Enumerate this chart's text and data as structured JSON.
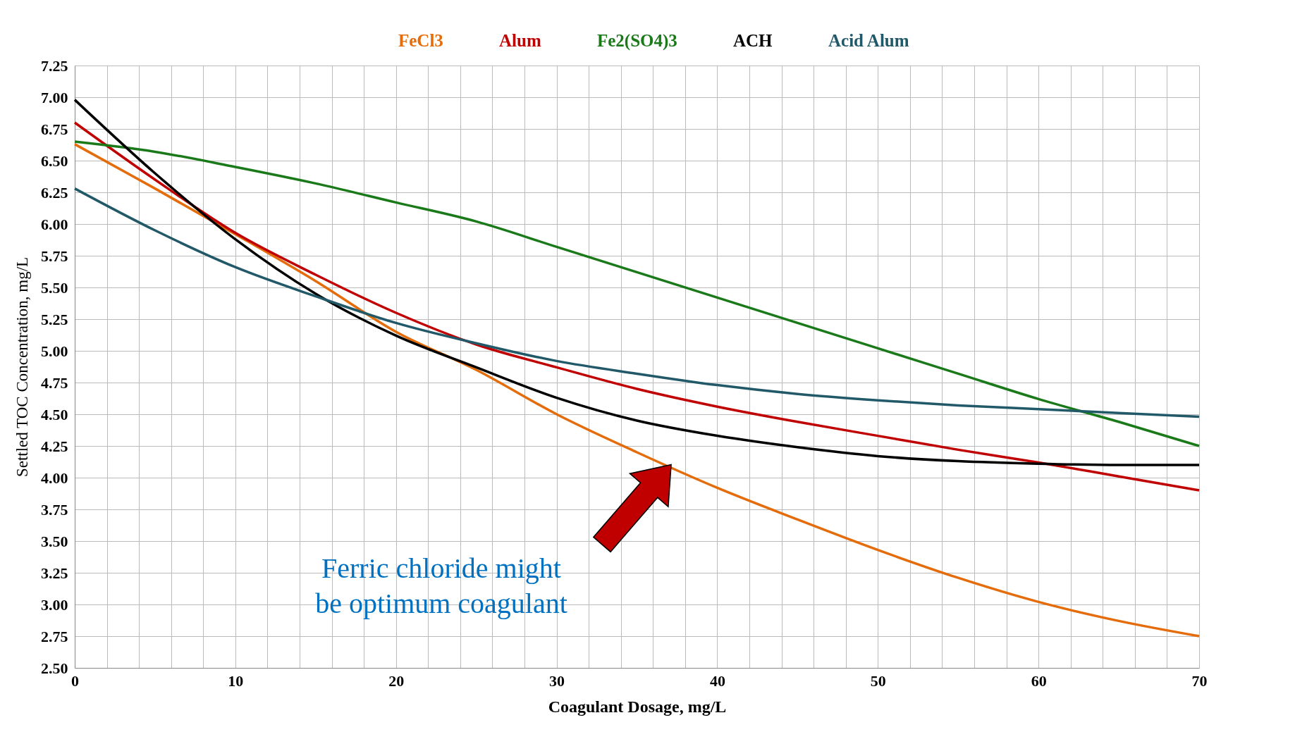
{
  "chart_data": {
    "type": "line",
    "xlabel": "Coagulant Dosage, mg/L",
    "ylabel": "Settled TOC Concentration, mg/L",
    "x": [
      0,
      5,
      10,
      15,
      20,
      25,
      30,
      35,
      40,
      45,
      50,
      55,
      60,
      65,
      70
    ],
    "series": [
      {
        "name": "FeCl3",
        "color": "#e46c0a",
        "values": [
          6.63,
          6.28,
          5.92,
          5.55,
          5.15,
          4.85,
          4.5,
          4.2,
          3.92,
          3.67,
          3.43,
          3.21,
          3.02,
          2.87,
          2.75
        ]
      },
      {
        "name": "Alum",
        "color": "#c00000",
        "values": [
          6.8,
          6.35,
          5.93,
          5.6,
          5.3,
          5.05,
          4.87,
          4.7,
          4.56,
          4.44,
          4.33,
          4.22,
          4.12,
          4.01,
          3.9
        ]
      },
      {
        "name": "Fe2(SO4)3",
        "color": "#1a7a1a",
        "values": [
          6.65,
          6.57,
          6.45,
          6.32,
          6.17,
          6.02,
          5.82,
          5.62,
          5.42,
          5.22,
          5.02,
          4.82,
          4.62,
          4.44,
          4.25
        ]
      },
      {
        "name": "ACH",
        "color": "#000000",
        "values": [
          6.98,
          6.4,
          5.88,
          5.45,
          5.12,
          4.87,
          4.63,
          4.45,
          4.33,
          4.24,
          4.17,
          4.13,
          4.11,
          4.1,
          4.1
        ]
      },
      {
        "name": "Acid Alum",
        "color": "#215968",
        "values": [
          6.28,
          5.95,
          5.66,
          5.43,
          5.22,
          5.06,
          4.92,
          4.82,
          4.73,
          4.66,
          4.61,
          4.57,
          4.54,
          4.51,
          4.48
        ]
      }
    ],
    "xlim": [
      0,
      70
    ],
    "xticks": [
      0,
      {
        "value": 2,
        "label": null
      },
      {
        "value": 4,
        "label": null
      },
      {
        "value": 6,
        "label": null
      },
      {
        "value": 8,
        "label": null
      },
      10,
      {
        "value": 12,
        "label": null
      },
      {
        "value": 14,
        "label": null
      },
      {
        "value": 16,
        "label": null
      },
      {
        "value": 18,
        "label": null
      },
      20,
      {
        "value": 22,
        "label": null
      },
      {
        "value": 24,
        "label": null
      },
      {
        "value": 26,
        "label": null
      },
      {
        "value": 28,
        "label": null
      },
      30,
      {
        "value": 32,
        "label": null
      },
      {
        "value": 34,
        "label": null
      },
      {
        "value": 36,
        "label": null
      },
      {
        "value": 38,
        "label": null
      },
      40,
      {
        "value": 42,
        "label": null
      },
      {
        "value": 44,
        "label": null
      },
      {
        "value": 46,
        "label": null
      },
      {
        "value": 48,
        "label": null
      },
      50,
      {
        "value": 52,
        "label": null
      },
      {
        "value": 54,
        "label": null
      },
      {
        "value": 56,
        "label": null
      },
      {
        "value": 58,
        "label": null
      },
      60,
      {
        "value": 62,
        "label": null
      },
      {
        "value": 64,
        "label": null
      },
      {
        "value": 66,
        "label": null
      },
      {
        "value": 68,
        "label": null
      },
      70
    ],
    "ylim": [
      2.5,
      7.25
    ],
    "yticks": [
      {
        "value": 2.5,
        "label": "2.50"
      },
      2.75,
      {
        "value": 3,
        "label": "3.00"
      },
      3.25,
      {
        "value": 3.5,
        "label": "3.50"
      },
      3.75,
      {
        "value": 4,
        "label": "4.00"
      },
      4.25,
      {
        "value": 4.5,
        "label": "4.50"
      },
      4.75,
      {
        "value": 5,
        "label": "5.00"
      },
      5.25,
      {
        "value": 5.5,
        "label": "5.50"
      },
      5.75,
      {
        "value": 6,
        "label": "6.00"
      },
      6.25,
      {
        "value": 6.5,
        "label": "6.50"
      },
      6.75,
      {
        "value": 7,
        "label": "7.00"
      },
      7.25
    ],
    "grid": true,
    "legend": "top",
    "marker": "none",
    "line_style": "solid",
    "annotations": [
      "Ferric chloride might\nbe optimum coagulant"
    ]
  }
}
